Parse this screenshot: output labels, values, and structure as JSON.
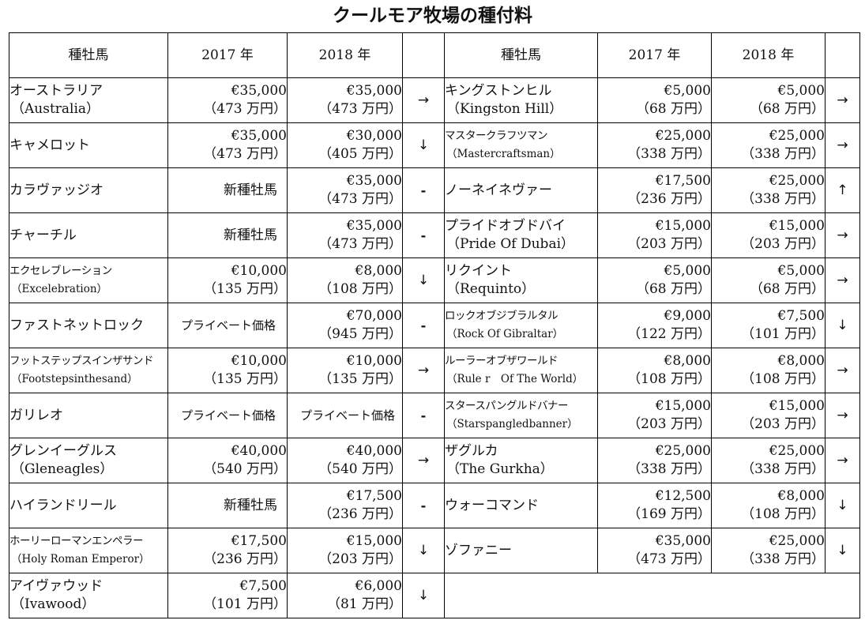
{
  "title": "クールモア牧場の種付料",
  "headers": {
    "name": "種牡馬",
    "y2017": "2017 年",
    "y2018": "2018 年"
  },
  "left": [
    {
      "jp": "オーストラリア",
      "en": "（Australia）",
      "p17": "€35,000",
      "m17": "（473 万円）",
      "p18": "€35,000",
      "m18": "（473 万円）",
      "trend": "→"
    },
    {
      "jp": "キャメロット",
      "en": "",
      "p17": "€35,000",
      "m17": "（473 万円）",
      "p18": "€30,000",
      "m18": "（405 万円）",
      "trend": "↓"
    },
    {
      "jp": "カラヴァッジオ",
      "en": "",
      "p17": "新種牡馬",
      "m17": "",
      "p18": "€35,000",
      "m18": "（473 万円）",
      "trend": "-"
    },
    {
      "jp": "チャーチル",
      "en": "",
      "p17": "新種牡馬",
      "m17": "",
      "p18": "€35,000",
      "m18": "（473 万円）",
      "trend": "-"
    },
    {
      "jp": "エクセレブレーション",
      "en": "（Excelebration）",
      "p17": "€10,000",
      "m17": "（135 万円）",
      "p18": "€8,000",
      "m18": "（108 万円）",
      "trend": "↓"
    },
    {
      "jp": "ファストネットロック",
      "en": "",
      "p17": "プライベート価格",
      "m17": "",
      "p18": "€70,000",
      "m18": "（945 万円）",
      "trend": "-"
    },
    {
      "jp": "フットステップスインザサンド",
      "en": "（Footstepsinthesand）",
      "p17": "€10,000",
      "m17": "（135 万円）",
      "p18": "€10,000",
      "m18": "（135 万円）",
      "trend": "→"
    },
    {
      "jp": "ガリレオ",
      "en": "",
      "p17": "プライベート価格",
      "m17": "",
      "p18": "プライベート価格",
      "m18": "",
      "trend": "-"
    },
    {
      "jp": "グレンイーグルス",
      "en": "（Gleneagles）",
      "p17": "€40,000",
      "m17": "（540 万円）",
      "p18": "€40,000",
      "m18": "（540 万円）",
      "trend": "→"
    },
    {
      "jp": "ハイランドリール",
      "en": "",
      "p17": "新種牡馬",
      "m17": "",
      "p18": "€17,500",
      "m18": "（236 万円）",
      "trend": "-"
    },
    {
      "jp": "ホーリーローマンエンペラー",
      "en": "（Holy Roman Emperor）",
      "p17": "€17,500",
      "m17": "（236 万円）",
      "p18": "€15,000",
      "m18": "（203 万円）",
      "trend": "↓"
    },
    {
      "jp": "アイヴァウッド",
      "en": "（Ivawood）",
      "p17": "€7,500",
      "m17": "（101 万円）",
      "p18": "€6,000",
      "m18": "（81 万円）",
      "trend": "↓"
    }
  ],
  "right": [
    {
      "jp": "キングストンヒル",
      "en": "（Kingston Hill）",
      "p17": "€5,000",
      "m17": "（68 万円）",
      "p18": "€5,000",
      "m18": "（68 万円）",
      "trend": "→"
    },
    {
      "jp": "マスタークラフツマン",
      "en": "（Mastercraftsman）",
      "p17": "€25,000",
      "m17": "（338 万円）",
      "p18": "€25,000",
      "m18": "（338 万円）",
      "trend": "→"
    },
    {
      "jp": "ノーネイネヴァー",
      "en": "",
      "p17": "€17,500",
      "m17": "（236 万円）",
      "p18": "€25,000",
      "m18": "（338 万円）",
      "trend": "↑"
    },
    {
      "jp": "プライドオブドバイ",
      "en": "（Pride Of Dubai）",
      "p17": "€15,000",
      "m17": "（203 万円）",
      "p18": "€15,000",
      "m18": "（203 万円）",
      "trend": "→"
    },
    {
      "jp": "リクイント",
      "en": "（Requinto）",
      "p17": "€5,000",
      "m17": "（68 万円）",
      "p18": "€5,000",
      "m18": "（68 万円）",
      "trend": "→"
    },
    {
      "jp": "ロックオブジブラルタル",
      "en": "（Rock Of Gibraltar）",
      "p17": "€9,000",
      "m17": "（122 万円）",
      "p18": "€7,500",
      "m18": "（101 万円）",
      "trend": "↓"
    },
    {
      "jp": "ルーラーオブザワールド",
      "en": "（Rule r　Of The World）",
      "p17": "€8,000",
      "m17": "（108 万円）",
      "p18": "€8,000",
      "m18": "（108 万円）",
      "trend": "→"
    },
    {
      "jp": "スタースパングルドバナー",
      "en": "（Starspangledbanner）",
      "p17": "€15,000",
      "m17": "（203 万円）",
      "p18": "€15,000",
      "m18": "（203 万円）",
      "trend": "→"
    },
    {
      "jp": "ザグルカ",
      "en": "（The Gurkha）",
      "p17": "€25,000",
      "m17": "（338 万円）",
      "p18": "€25,000",
      "m18": "（338 万円）",
      "trend": "→"
    },
    {
      "jp": "ウォーコマンド",
      "en": "",
      "p17": "€12,500",
      "m17": "（169 万円）",
      "p18": "€8,000",
      "m18": "（108 万円）",
      "trend": "↓"
    },
    {
      "jp": "ゾファニー",
      "en": "",
      "p17": "€35,000",
      "m17": "（473 万円）",
      "p18": "€25,000",
      "m18": "（338 万円）",
      "trend": "↓"
    }
  ]
}
